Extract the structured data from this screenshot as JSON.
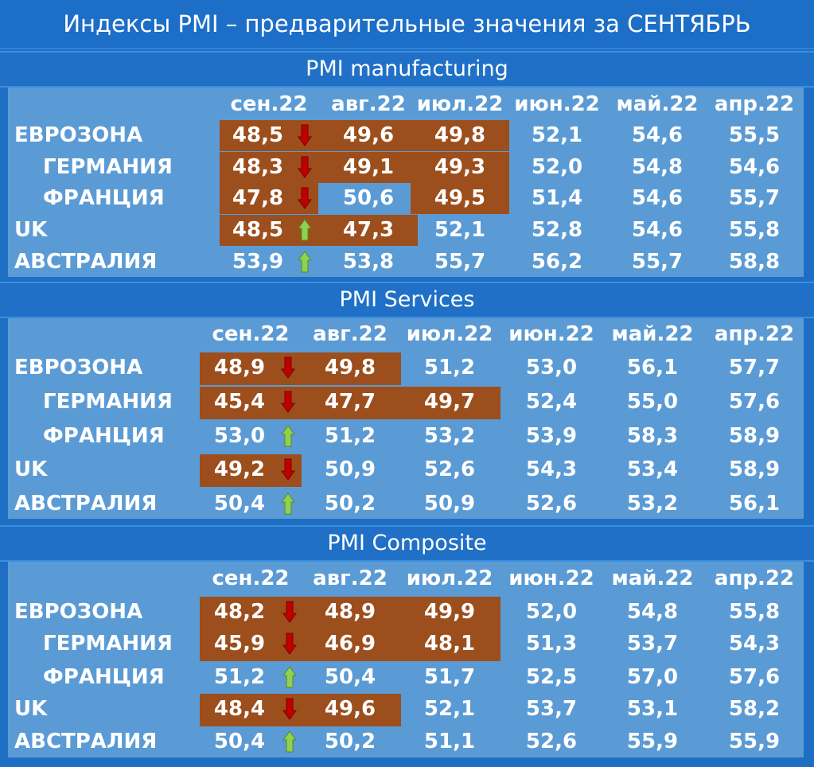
{
  "title": "Индексы PMI – предварительные значения за СЕНТЯБРЬ",
  "colors": {
    "background": "#1e6fc4",
    "panel": "#5b9bd5",
    "highlight": "#9c4e1c",
    "arrow_down": "#c00000",
    "arrow_up": "#92d050",
    "text": "#ffffff"
  },
  "chart_data": [
    {
      "type": "table",
      "title": "PMI manufacturing",
      "columns": [
        "сен.22",
        "авг.22",
        "июл.22",
        "июн.22",
        "май.22",
        "апр.22"
      ],
      "rows": [
        {
          "label": "ЕВРОЗОНА",
          "indent": false,
          "values": [
            "48,5",
            "49,6",
            "49,8",
            "52,1",
            "54,6",
            "55,5"
          ],
          "trend": "down",
          "highlight": [
            true,
            true,
            true,
            false,
            false,
            false
          ]
        },
        {
          "label": "ГЕРМАНИЯ",
          "indent": true,
          "values": [
            "48,3",
            "49,1",
            "49,3",
            "52,0",
            "54,8",
            "54,6"
          ],
          "trend": "down",
          "highlight": [
            true,
            true,
            true,
            false,
            false,
            false
          ]
        },
        {
          "label": "ФРАНЦИЯ",
          "indent": true,
          "values": [
            "47,8",
            "50,6",
            "49,5",
            "51,4",
            "54,6",
            "55,7"
          ],
          "trend": "down",
          "highlight": [
            true,
            false,
            true,
            false,
            false,
            false
          ]
        },
        {
          "label": "UK",
          "indent": false,
          "values": [
            "48,5",
            "47,3",
            "52,1",
            "52,8",
            "54,6",
            "55,8"
          ],
          "trend": "up",
          "highlight": [
            true,
            true,
            false,
            false,
            false,
            false
          ]
        },
        {
          "label": "АВСТРАЛИЯ",
          "indent": false,
          "values": [
            "53,9",
            "53,8",
            "55,7",
            "56,2",
            "55,7",
            "58,8"
          ],
          "trend": "up",
          "highlight": [
            false,
            false,
            false,
            false,
            false,
            false
          ]
        }
      ]
    },
    {
      "type": "table",
      "title": "PMI Services",
      "columns": [
        "сен.22",
        "авг.22",
        "июл.22",
        "июн.22",
        "май.22",
        "апр.22"
      ],
      "rows": [
        {
          "label": "ЕВРОЗОНА",
          "indent": false,
          "values": [
            "48,9",
            "49,8",
            "51,2",
            "53,0",
            "56,1",
            "57,7"
          ],
          "trend": "down",
          "highlight": [
            true,
            true,
            false,
            false,
            false,
            false
          ]
        },
        {
          "label": "ГЕРМАНИЯ",
          "indent": true,
          "values": [
            "45,4",
            "47,7",
            "49,7",
            "52,4",
            "55,0",
            "57,6"
          ],
          "trend": "down",
          "highlight": [
            true,
            true,
            true,
            false,
            false,
            false
          ]
        },
        {
          "label": "ФРАНЦИЯ",
          "indent": true,
          "values": [
            "53,0",
            "51,2",
            "53,2",
            "53,9",
            "58,3",
            "58,9"
          ],
          "trend": "up",
          "highlight": [
            false,
            false,
            false,
            false,
            false,
            false
          ]
        },
        {
          "label": "UK",
          "indent": false,
          "values": [
            "49,2",
            "50,9",
            "52,6",
            "54,3",
            "53,4",
            "58,9"
          ],
          "trend": "down",
          "highlight": [
            true,
            false,
            false,
            false,
            false,
            false
          ]
        },
        {
          "label": "АВСТРАЛИЯ",
          "indent": false,
          "values": [
            "50,4",
            "50,2",
            "50,9",
            "52,6",
            "53,2",
            "56,1"
          ],
          "trend": "up",
          "highlight": [
            false,
            false,
            false,
            false,
            false,
            false
          ]
        }
      ]
    },
    {
      "type": "table",
      "title": "PMI Composite",
      "columns": [
        "сен.22",
        "авг.22",
        "июл.22",
        "июн.22",
        "май.22",
        "апр.22"
      ],
      "rows": [
        {
          "label": "ЕВРОЗОНА",
          "indent": false,
          "values": [
            "48,2",
            "48,9",
            "49,9",
            "52,0",
            "54,8",
            "55,8"
          ],
          "trend": "down",
          "highlight": [
            true,
            true,
            true,
            false,
            false,
            false
          ]
        },
        {
          "label": "ГЕРМАНИЯ",
          "indent": true,
          "values": [
            "45,9",
            "46,9",
            "48,1",
            "51,3",
            "53,7",
            "54,3"
          ],
          "trend": "down",
          "highlight": [
            true,
            true,
            true,
            false,
            false,
            false
          ]
        },
        {
          "label": "ФРАНЦИЯ",
          "indent": true,
          "values": [
            "51,2",
            "50,4",
            "51,7",
            "52,5",
            "57,0",
            "57,6"
          ],
          "trend": "up",
          "highlight": [
            false,
            false,
            false,
            false,
            false,
            false
          ]
        },
        {
          "label": "UK",
          "indent": false,
          "values": [
            "48,4",
            "49,6",
            "52,1",
            "53,7",
            "53,1",
            "58,2"
          ],
          "trend": "down",
          "highlight": [
            true,
            true,
            false,
            false,
            false,
            false
          ]
        },
        {
          "label": "АВСТРАЛИЯ",
          "indent": false,
          "values": [
            "50,4",
            "50,2",
            "51,1",
            "52,6",
            "55,9",
            "55,9"
          ],
          "trend": "up",
          "highlight": [
            false,
            false,
            false,
            false,
            false,
            false
          ]
        }
      ]
    }
  ]
}
